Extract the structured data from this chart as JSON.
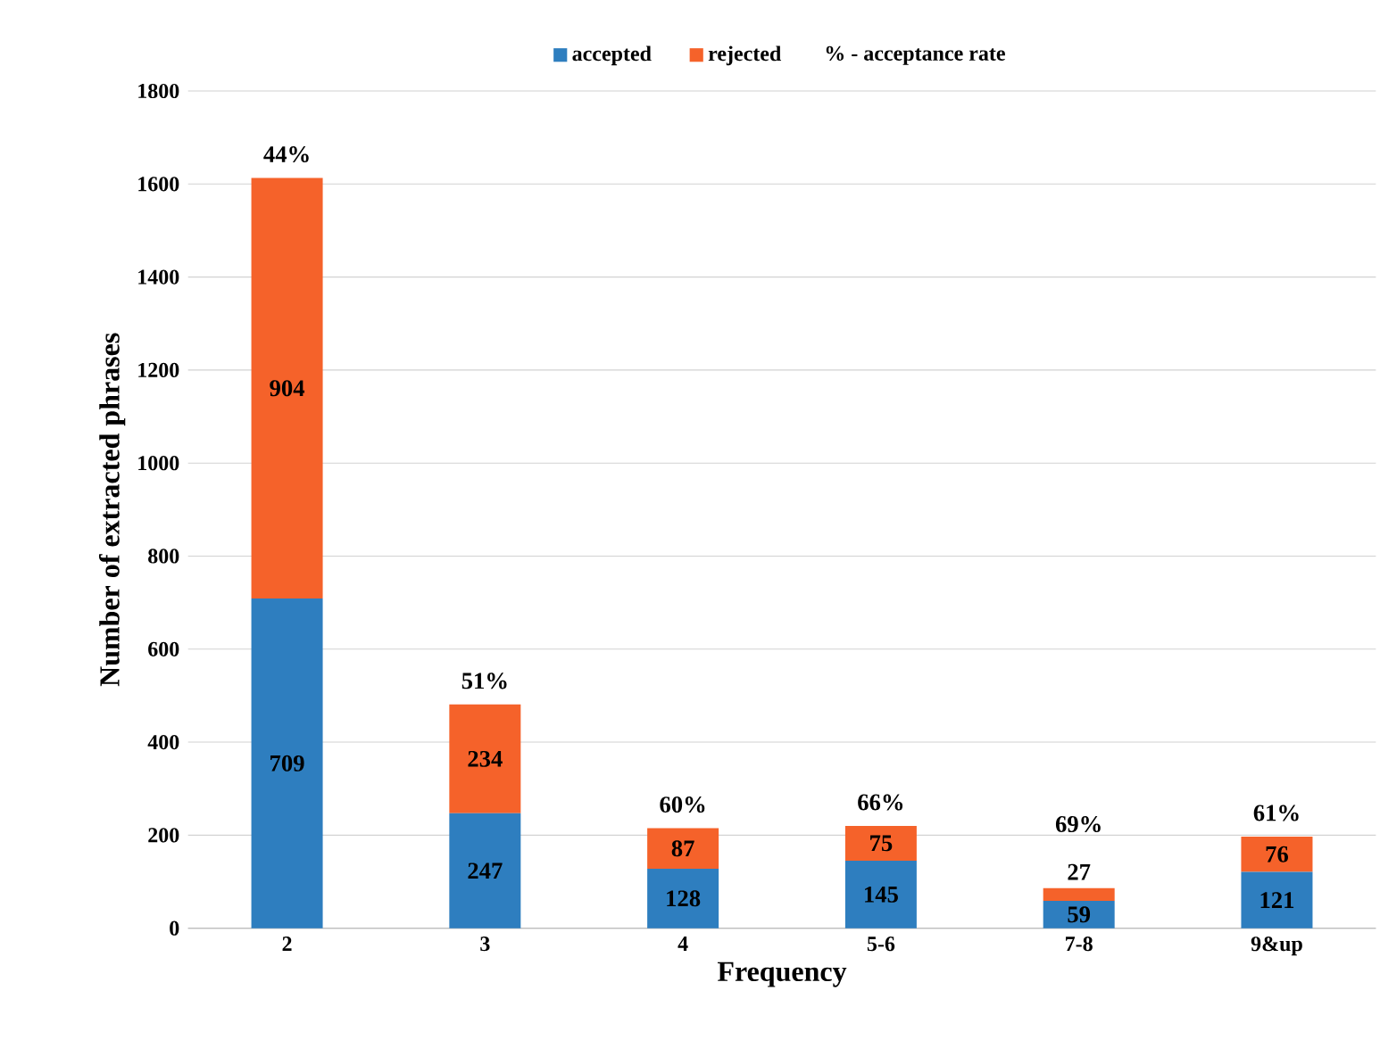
{
  "chart_data": {
    "type": "bar",
    "stacked": true,
    "xlabel": "Frequency",
    "ylabel": "Number of extracted phrases",
    "categories": [
      "2",
      "3",
      "4",
      "5-6",
      "7-8",
      "9&up"
    ],
    "series": [
      {
        "name": "accepted",
        "color": "#2e7ebf",
        "values": [
          709,
          247,
          128,
          145,
          59,
          121
        ]
      },
      {
        "name": "rejected",
        "color": "#f5622a",
        "values": [
          904,
          234,
          87,
          75,
          27,
          76
        ]
      }
    ],
    "ylim": [
      0,
      1800
    ],
    "yticks": [
      0,
      200,
      400,
      600,
      800,
      1000,
      1200,
      1400,
      1600,
      1800
    ],
    "grid": "y",
    "legend": "top",
    "data_labels": true,
    "annotations": [
      "% - acceptance rate",
      {
        "text": "44%",
        "x": "2",
        "y": 1613
      },
      {
        "text": "51%",
        "x": "3",
        "y": 481
      },
      {
        "text": "60%",
        "x": "4",
        "y": 215
      },
      {
        "text": "66%",
        "x": "5-6",
        "y": 220
      },
      {
        "text": "69%",
        "x": "7-8",
        "y": 86
      },
      {
        "text": "61%",
        "x": "9&up",
        "y": 197
      }
    ]
  }
}
